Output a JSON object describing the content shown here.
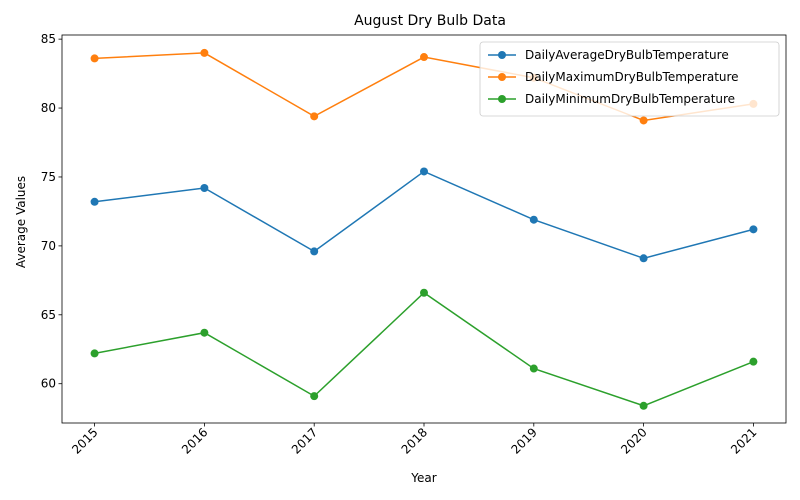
{
  "chart_data": {
    "type": "line",
    "title": "August Dry Bulb Data",
    "xlabel": "Year",
    "ylabel": "Average Values",
    "categories": [
      "2015",
      "2016",
      "2017",
      "2018",
      "2019",
      "2020",
      "2021"
    ],
    "ylim": [
      57.15,
      85.3
    ],
    "yticks": [
      60,
      65,
      70,
      75,
      80,
      85
    ],
    "grid": false,
    "legend_position": "top-right",
    "series": [
      {
        "name": "DailyAverageDryBulbTemperature",
        "color": "#1f77b4",
        "values": [
          73.2,
          74.2,
          69.6,
          75.4,
          71.9,
          69.1,
          71.2
        ]
      },
      {
        "name": "DailyMaximumDryBulbTemperature",
        "color": "#ff7f0e",
        "values": [
          83.6,
          84.0,
          79.4,
          83.7,
          82.2,
          79.1,
          80.3
        ]
      },
      {
        "name": "DailyMinimumDryBulbTemperature",
        "color": "#2ca02c",
        "values": [
          62.2,
          63.7,
          59.1,
          66.6,
          61.1,
          58.4,
          61.6
        ]
      }
    ]
  }
}
